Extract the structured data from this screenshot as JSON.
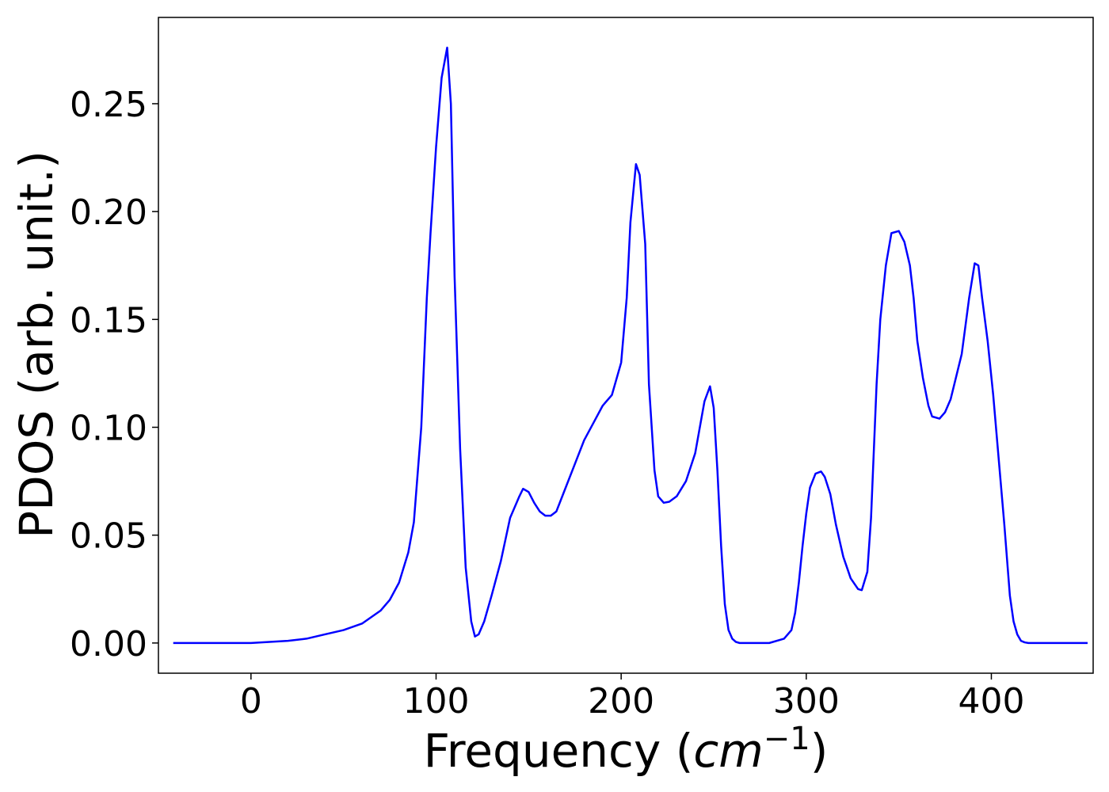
{
  "chart_data": {
    "type": "line",
    "title": "",
    "xlabel": "Frequency (",
    "xlabel_math": "cm",
    "xlabel_sup": "−1",
    "xlabel_close": ")",
    "ylabel": "PDOS (arb. unit.)",
    "xlim": [
      -50,
      455
    ],
    "ylim": [
      -0.014,
      0.29
    ],
    "xticks": [
      0,
      100,
      200,
      300,
      400
    ],
    "xtick_labels": [
      "0",
      "100",
      "200",
      "300",
      "400"
    ],
    "yticks": [
      0.0,
      0.05,
      0.1,
      0.15,
      0.2,
      0.25
    ],
    "ytick_labels": [
      "0.00",
      "0.05",
      "0.10",
      "0.15",
      "0.20",
      "0.25"
    ],
    "grid": false,
    "series": [
      {
        "color": "#0000ff",
        "x": [
          -42,
          -30,
          -20,
          -10,
          0,
          10,
          20,
          30,
          40,
          50,
          60,
          70,
          75,
          80,
          85,
          88,
          92,
          95,
          97,
          100,
          103,
          106,
          108,
          110,
          113,
          116,
          119,
          121,
          123,
          126,
          130,
          135,
          140,
          145,
          147,
          150,
          153,
          156,
          159,
          162,
          165,
          170,
          175,
          180,
          185,
          190,
          195,
          200,
          203,
          205,
          208,
          210,
          213,
          215,
          218,
          220,
          223,
          226,
          230,
          235,
          240,
          245,
          248,
          250,
          252,
          254,
          256,
          258,
          260,
          262,
          264,
          266,
          268,
          272,
          280,
          288,
          292,
          294,
          296,
          298,
          300,
          302,
          305,
          308,
          310,
          313,
          316,
          320,
          324,
          328,
          330,
          333,
          335,
          338,
          340,
          343,
          346,
          350,
          353,
          356,
          358,
          360,
          363,
          366,
          368,
          372,
          375,
          378,
          380,
          384,
          388,
          391,
          393,
          395,
          398,
          401,
          404,
          407,
          410,
          412,
          414,
          416,
          418,
          420,
          425,
          435,
          452
        ],
        "y": [
          0,
          0,
          0,
          0,
          0,
          0.0005,
          0.001,
          0.002,
          0.004,
          0.006,
          0.009,
          0.015,
          0.02,
          0.028,
          0.042,
          0.056,
          0.1,
          0.16,
          0.19,
          0.23,
          0.262,
          0.276,
          0.25,
          0.17,
          0.09,
          0.035,
          0.01,
          0.003,
          0.004,
          0.01,
          0.022,
          0.038,
          0.058,
          0.068,
          0.0715,
          0.07,
          0.065,
          0.061,
          0.059,
          0.059,
          0.061,
          0.072,
          0.083,
          0.094,
          0.102,
          0.11,
          0.115,
          0.13,
          0.16,
          0.195,
          0.222,
          0.217,
          0.185,
          0.12,
          0.08,
          0.068,
          0.065,
          0.0655,
          0.068,
          0.075,
          0.088,
          0.112,
          0.119,
          0.109,
          0.08,
          0.045,
          0.018,
          0.006,
          0.002,
          0.0005,
          0,
          0,
          0,
          0,
          0,
          0.002,
          0.006,
          0.014,
          0.028,
          0.045,
          0.06,
          0.072,
          0.0785,
          0.0795,
          0.077,
          0.069,
          0.055,
          0.04,
          0.03,
          0.025,
          0.0245,
          0.033,
          0.058,
          0.12,
          0.15,
          0.175,
          0.19,
          0.191,
          0.186,
          0.175,
          0.16,
          0.14,
          0.123,
          0.11,
          0.105,
          0.104,
          0.107,
          0.113,
          0.12,
          0.134,
          0.16,
          0.176,
          0.175,
          0.16,
          0.14,
          0.115,
          0.085,
          0.055,
          0.022,
          0.01,
          0.004,
          0.001,
          0.0003,
          0,
          0,
          0,
          0
        ]
      }
    ]
  }
}
